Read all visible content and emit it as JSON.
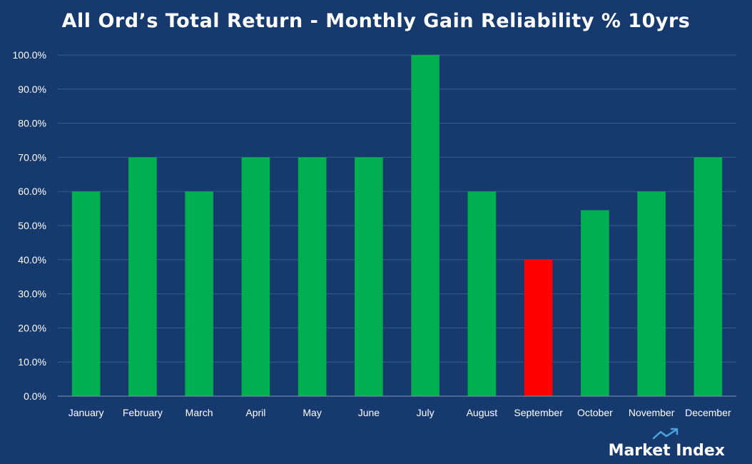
{
  "chart_data": {
    "type": "bar",
    "title": "All Ord’s Total Return - Monthly Gain Reliability % 10yrs",
    "xlabel": "",
    "ylabel": "",
    "categories": [
      "January",
      "February",
      "March",
      "April",
      "May",
      "June",
      "July",
      "August",
      "September",
      "October",
      "November",
      "December"
    ],
    "values": [
      60,
      70,
      60,
      70,
      70,
      70,
      100,
      60,
      40,
      54.5,
      60,
      70
    ],
    "bar_colors": [
      "#00b050",
      "#00b050",
      "#00b050",
      "#00b050",
      "#00b050",
      "#00b050",
      "#00b050",
      "#00b050",
      "#ff0000",
      "#00b050",
      "#00b050",
      "#00b050"
    ],
    "ylim": [
      0,
      100
    ],
    "yticks": [
      "0.0%",
      "10.0%",
      "20.0%",
      "30.0%",
      "40.0%",
      "50.0%",
      "60.0%",
      "70.0%",
      "80.0%",
      "90.0%",
      "100.0%"
    ],
    "grid": true,
    "legend": "none"
  },
  "branding": {
    "logo_text": "Market Index",
    "logo_icon": "trend-up-arrow-icon"
  },
  "colors": {
    "background": "#173a6e",
    "gridline": "#3a5a8a",
    "positive_bar": "#00b050",
    "negative_bar": "#ff0000",
    "text": "#ffffff",
    "logo_icon": "#4aa3df"
  }
}
